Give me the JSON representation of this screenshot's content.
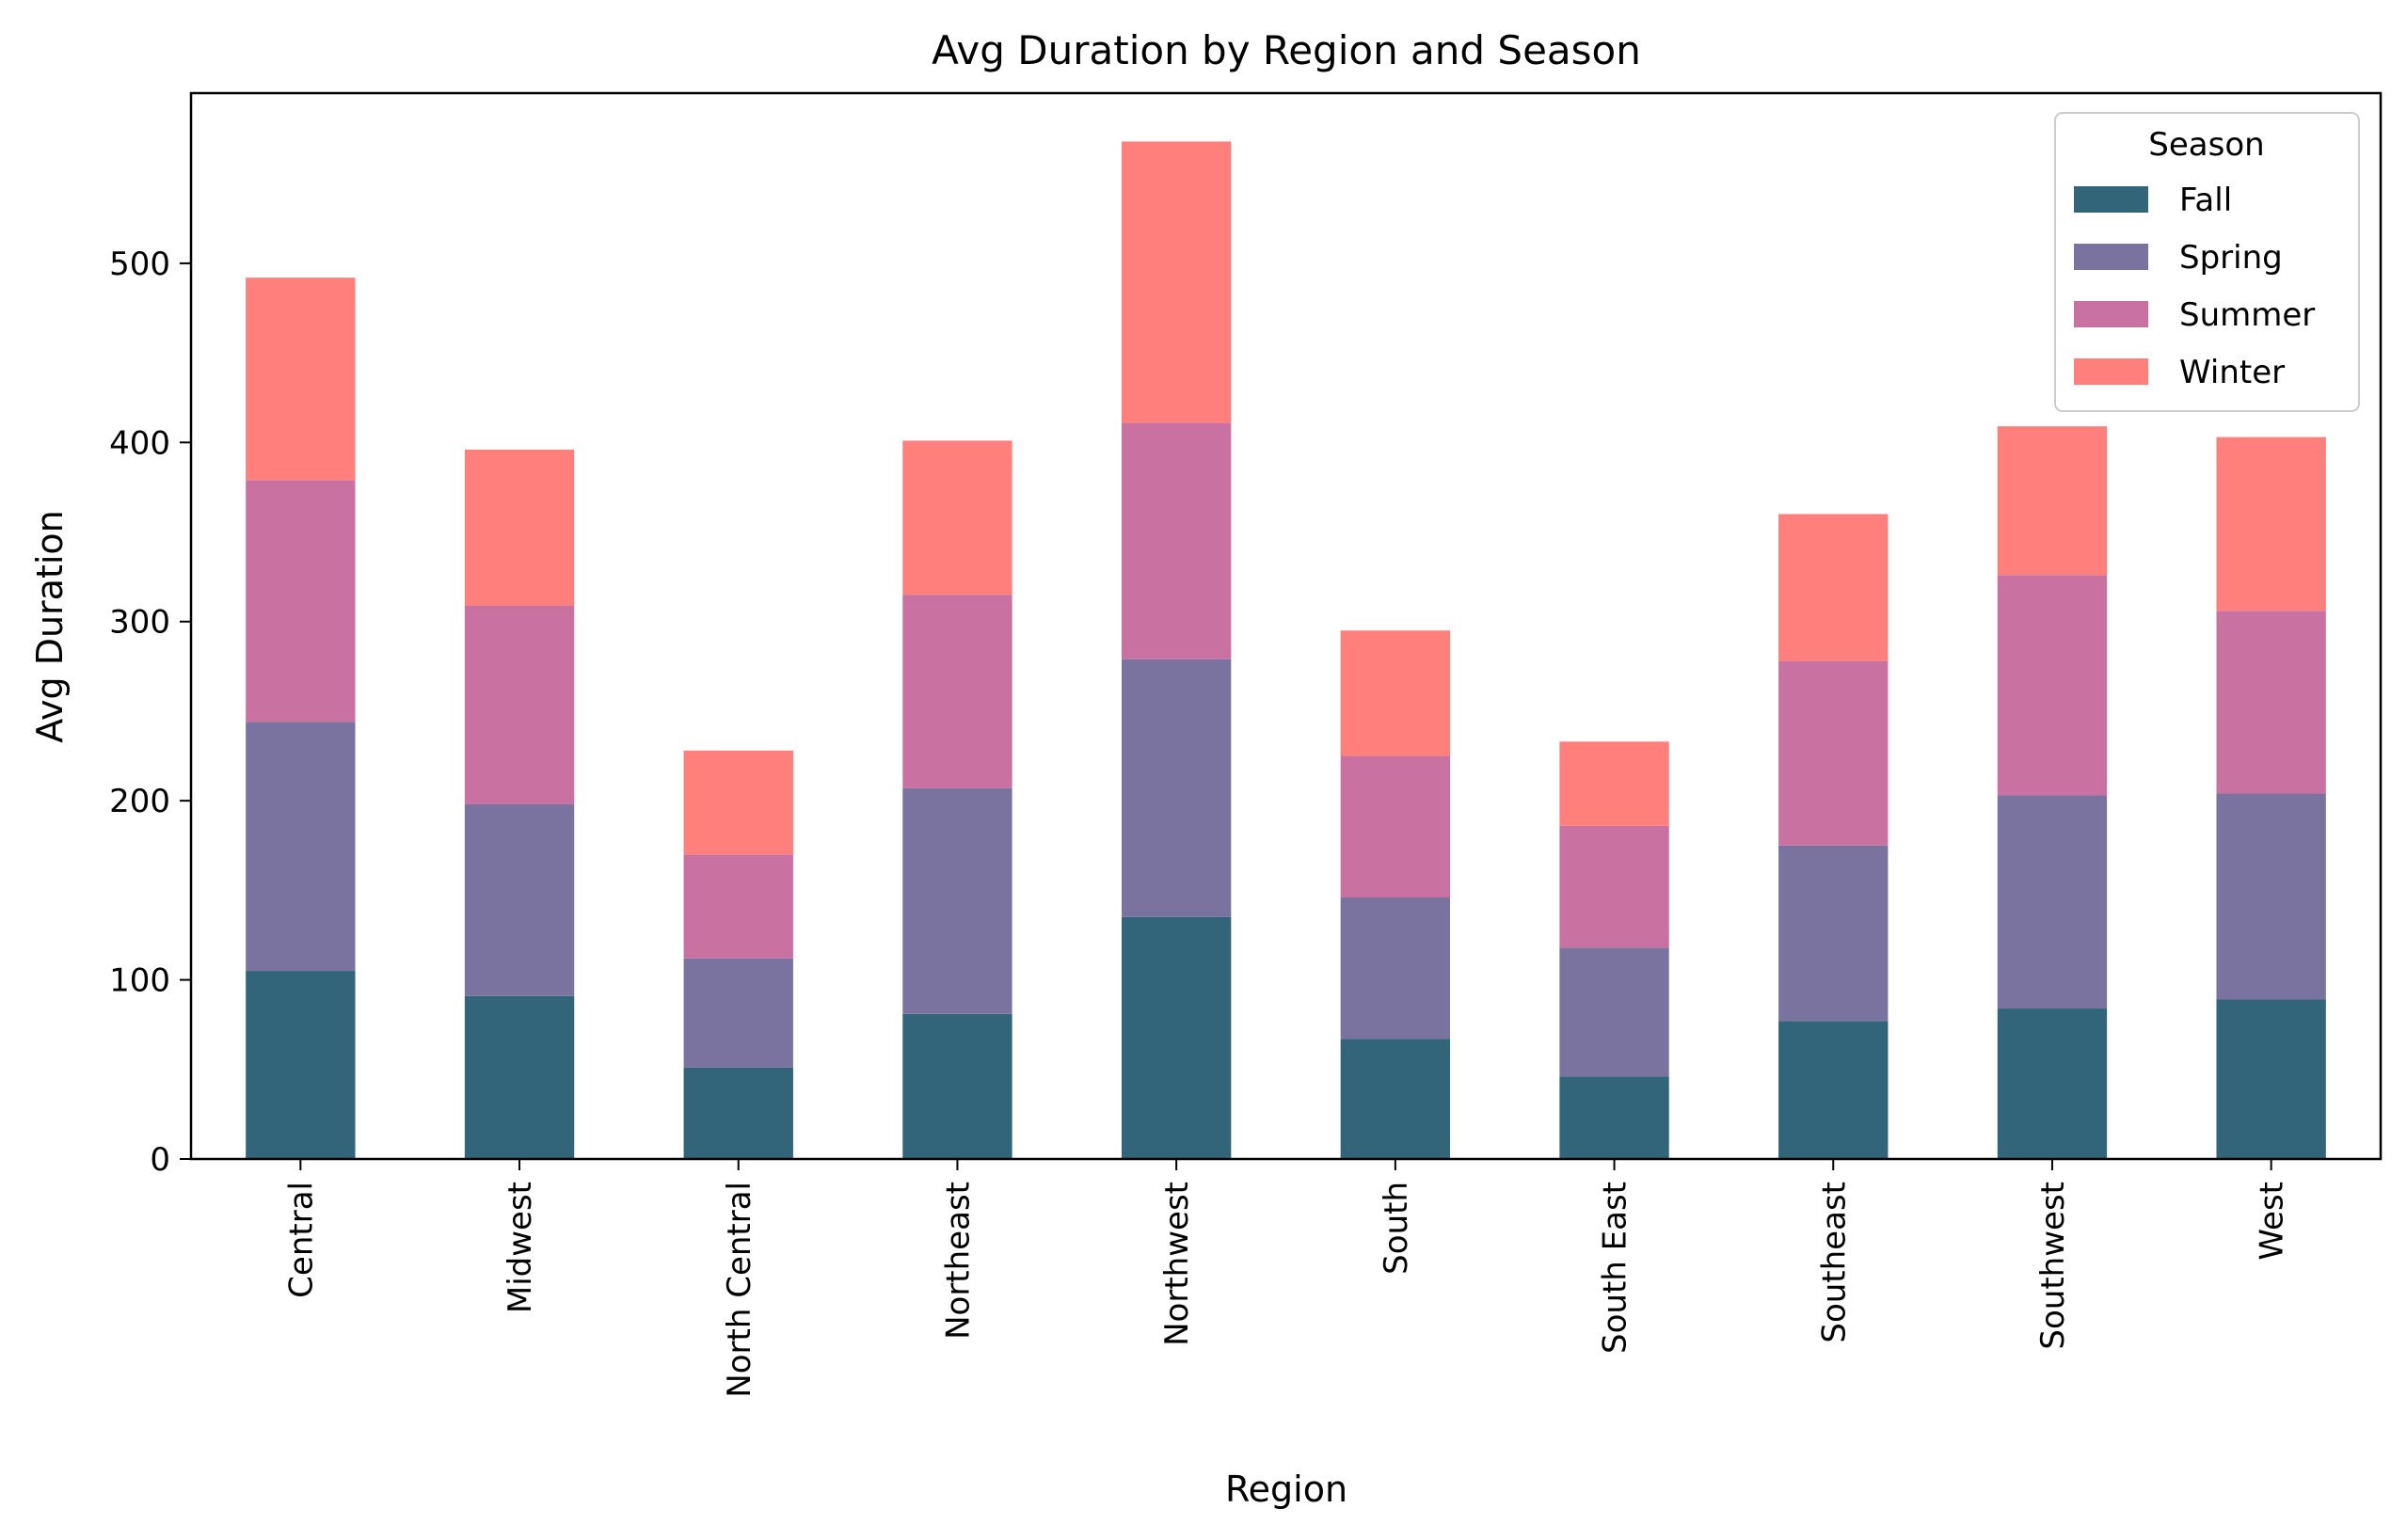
{
  "chart_data": {
    "type": "bar",
    "stacked": true,
    "title": "Avg Duration by Region and Season",
    "xlabel": "Region",
    "ylabel": "Avg Duration",
    "ylim": [
      0,
      595
    ],
    "yticks": [
      0,
      100,
      200,
      300,
      400,
      500
    ],
    "grid": false,
    "legend": {
      "title": "Season",
      "placement": "top-right"
    },
    "categories": [
      "Central",
      "Midwest",
      "North Central",
      "Northeast",
      "Northwest",
      "South",
      "South East",
      "Southeast",
      "Southwest",
      "West"
    ],
    "series": [
      {
        "name": "Fall",
        "color": "#32647a",
        "values": [
          105,
          91,
          51,
          81,
          135,
          67,
          46,
          77,
          84,
          89
        ]
      },
      {
        "name": "Spring",
        "color": "#7a73a0",
        "values": [
          139,
          107,
          61,
          126,
          144,
          79,
          72,
          98,
          119,
          115
        ]
      },
      {
        "name": "Summer",
        "color": "#c971a0",
        "values": [
          135,
          111,
          58,
          108,
          132,
          79,
          68,
          103,
          123,
          102
        ]
      },
      {
        "name": "Winter",
        "color": "#ff7f7c",
        "values": [
          113,
          87,
          58,
          86,
          157,
          70,
          47,
          82,
          83,
          97
        ]
      }
    ]
  }
}
